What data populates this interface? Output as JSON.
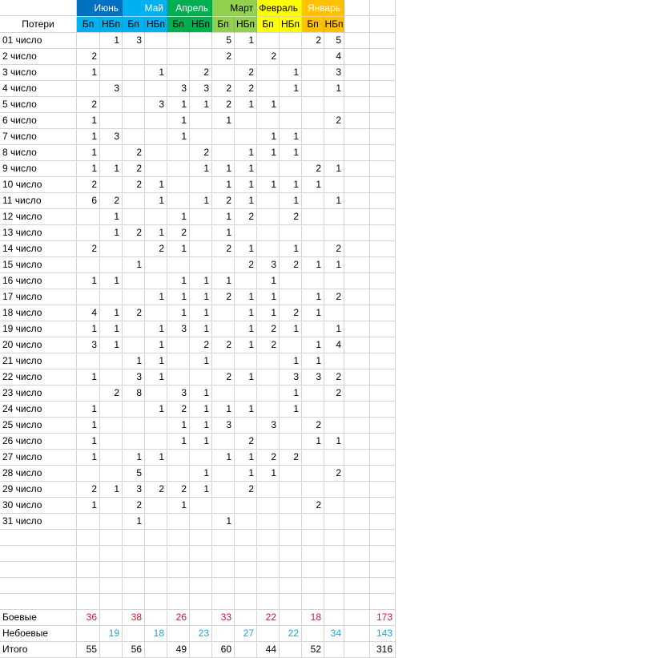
{
  "header": {
    "corner_label": "Потери",
    "months": [
      {
        "name": "Июнь",
        "color": "#0070c0",
        "text": "#ffffff",
        "sub_color": "#00b0f0",
        "sub_text": "#000000"
      },
      {
        "name": "Май",
        "color": "#00b0f0",
        "text": "#ffffff",
        "sub_color": "#00b0f0",
        "sub_text": "#000000"
      },
      {
        "name": "Апрель",
        "color": "#00b050",
        "text": "#ffffff",
        "sub_color": "#00b050",
        "sub_text": "#000000"
      },
      {
        "name": "Март",
        "color": "#92d050",
        "text": "#000000",
        "sub_color": "#92d050",
        "sub_text": "#000000"
      },
      {
        "name": "Февраль",
        "color": "#ffff00",
        "text": "#000000",
        "sub_color": "#ffff00",
        "sub_text": "#000000"
      },
      {
        "name": "Январь",
        "color": "#ffc000",
        "text": "#ffffff",
        "sub_color": "#ffc000",
        "sub_text": "#000000"
      }
    ],
    "sub_labels": [
      "Бп",
      "НБп"
    ]
  },
  "rows": [
    {
      "label": "01 число",
      "values": [
        "",
        "1",
        "3",
        "",
        "",
        "",
        "5",
        "1",
        "",
        "",
        "2",
        "5"
      ]
    },
    {
      "label": "2 число",
      "values": [
        "2",
        "",
        "",
        "",
        "",
        "",
        "2",
        "",
        "2",
        "",
        "",
        "4"
      ]
    },
    {
      "label": "3 число",
      "values": [
        "1",
        "",
        "",
        "1",
        "",
        "2",
        "",
        "2",
        "",
        "1",
        "",
        "3"
      ]
    },
    {
      "label": "4 число",
      "values": [
        "",
        "3",
        "",
        "",
        "3",
        "3",
        "2",
        "2",
        "",
        "1",
        "",
        "1"
      ]
    },
    {
      "label": "5 число",
      "values": [
        "2",
        "",
        "",
        "3",
        "1",
        "1",
        "2",
        "1",
        "1",
        "",
        "",
        ""
      ]
    },
    {
      "label": "6 число",
      "values": [
        "1",
        "",
        "",
        "",
        "1",
        "",
        "1",
        "",
        "",
        "",
        "",
        "2"
      ]
    },
    {
      "label": "7 число",
      "values": [
        "1",
        "3",
        "",
        "",
        "1",
        "",
        "",
        "",
        "1",
        "1",
        "",
        ""
      ]
    },
    {
      "label": "8 число",
      "values": [
        "1",
        "",
        "2",
        "",
        "",
        "2",
        "",
        "1",
        "1",
        "1",
        "",
        ""
      ]
    },
    {
      "label": "9 число",
      "values": [
        "1",
        "1",
        "2",
        "",
        "",
        "1",
        "1",
        "1",
        "",
        "",
        "2",
        "1"
      ]
    },
    {
      "label": "10 число",
      "values": [
        "2",
        "",
        "2",
        "1",
        "",
        "",
        "1",
        "1",
        "1",
        "1",
        "1",
        ""
      ]
    },
    {
      "label": "11 число",
      "values": [
        "6",
        "2",
        "",
        "1",
        "",
        "1",
        "2",
        "1",
        "",
        "1",
        "",
        "1"
      ]
    },
    {
      "label": "12 число",
      "values": [
        "",
        "1",
        "",
        "",
        "1",
        "",
        "1",
        "2",
        "",
        "2",
        "",
        ""
      ]
    },
    {
      "label": "13 число",
      "values": [
        "",
        "1",
        "2",
        "1",
        "2",
        "",
        "1",
        "",
        "",
        "",
        "",
        ""
      ]
    },
    {
      "label": "14 число",
      "values": [
        "2",
        "",
        "",
        "2",
        "1",
        "",
        "2",
        "1",
        "",
        "1",
        "",
        "2"
      ]
    },
    {
      "label": "15 число",
      "values": [
        "",
        "",
        "1",
        "",
        "",
        "",
        "",
        "2",
        "3",
        "2",
        "1",
        "1"
      ]
    },
    {
      "label": "16 число",
      "values": [
        "1",
        "1",
        "",
        "",
        "1",
        "1",
        "1",
        "",
        "1",
        "",
        "",
        ""
      ]
    },
    {
      "label": "17 число",
      "values": [
        "",
        "",
        "",
        "1",
        "1",
        "1",
        "2",
        "1",
        "1",
        "",
        "1",
        "2"
      ]
    },
    {
      "label": "18 число",
      "values": [
        "4",
        "1",
        "2",
        "",
        "1",
        "1",
        "",
        "1",
        "1",
        "2",
        "1",
        ""
      ]
    },
    {
      "label": "19 число",
      "values": [
        "1",
        "1",
        "",
        "1",
        "3",
        "1",
        "",
        "1",
        "2",
        "1",
        "",
        "1"
      ]
    },
    {
      "label": "20 число",
      "values": [
        "3",
        "1",
        "",
        "1",
        "",
        "2",
        "2",
        "1",
        "2",
        "",
        "1",
        "4"
      ]
    },
    {
      "label": "21 число",
      "values": [
        "",
        "",
        "1",
        "1",
        "",
        "1",
        "",
        "",
        "",
        "1",
        "1",
        ""
      ]
    },
    {
      "label": "22 число",
      "values": [
        "1",
        "",
        "3",
        "1",
        "",
        "",
        "2",
        "1",
        "",
        "3",
        "3",
        "2"
      ]
    },
    {
      "label": "23 число",
      "values": [
        "",
        "2",
        "8",
        "",
        "3",
        "1",
        "",
        "",
        "",
        "1",
        "",
        "2"
      ]
    },
    {
      "label": "24 число",
      "values": [
        "1",
        "",
        "",
        "1",
        "2",
        "1",
        "1",
        "1",
        "",
        "1",
        "",
        ""
      ]
    },
    {
      "label": "25 число",
      "values": [
        "1",
        "",
        "",
        "",
        "1",
        "1",
        "3",
        "",
        "3",
        "",
        "2",
        ""
      ]
    },
    {
      "label": "26 число",
      "values": [
        "1",
        "",
        "",
        "",
        "1",
        "1",
        "",
        "2",
        "",
        "",
        "1",
        "1"
      ]
    },
    {
      "label": "27 число",
      "values": [
        "1",
        "",
        "1",
        "1",
        "",
        "",
        "1",
        "1",
        "2",
        "2",
        "",
        ""
      ]
    },
    {
      "label": "28 число",
      "values": [
        "",
        "",
        "5",
        "",
        "",
        "1",
        "",
        "1",
        "1",
        "",
        "",
        "2"
      ]
    },
    {
      "label": "29 число",
      "values": [
        "2",
        "1",
        "3",
        "2",
        "2",
        "1",
        "",
        "2",
        "",
        "",
        "",
        ""
      ]
    },
    {
      "label": "30 число",
      "values": [
        "1",
        "",
        "2",
        "",
        "1",
        "",
        "",
        "",
        "",
        "",
        "2",
        ""
      ]
    },
    {
      "label": "31 число",
      "values": [
        "",
        "",
        "1",
        "",
        "",
        "",
        "1",
        "",
        "",
        "",
        "",
        ""
      ]
    }
  ],
  "empty_rows": 5,
  "summary": [
    {
      "label": "Боевые",
      "style": "red",
      "values": [
        "36",
        "",
        "38",
        "",
        "26",
        "",
        "33",
        "",
        "22",
        "",
        "18",
        ""
      ],
      "total": "173"
    },
    {
      "label": "Небоевые",
      "style": "blue",
      "values": [
        "",
        "19",
        "",
        "18",
        "",
        "23",
        "",
        "27",
        "",
        "22",
        "",
        "34"
      ],
      "total": "143"
    },
    {
      "label": "Итого",
      "style": "black",
      "values": [
        "55",
        "",
        "56",
        "",
        "49",
        "",
        "60",
        "",
        "44",
        "",
        "52",
        ""
      ],
      "total": "316"
    }
  ]
}
